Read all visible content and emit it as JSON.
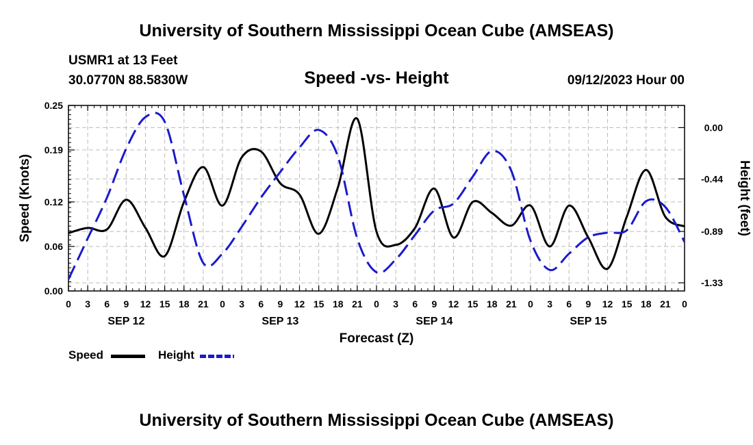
{
  "header": {
    "title": "University of Southern Mississippi Ocean Cube (AMSEAS)",
    "station": "USMR1 at 13 Feet",
    "location": "30.0770N  88.5830W",
    "subtitle": "Speed -vs- Height",
    "datetime": "09/12/2023 Hour 00"
  },
  "footer": {
    "title": "University of Southern Mississippi Ocean Cube (AMSEAS)"
  },
  "legend": {
    "speed_label": "Speed",
    "height_label": "Height"
  },
  "colors": {
    "speed": "#000000",
    "height": "#1a1acc",
    "grid": "#bbbbbb"
  },
  "chart_data": {
    "type": "line",
    "title": "Speed -vs- Height",
    "xlabel": "Forecast (Z)",
    "ylabel": "Speed (Knots)",
    "y2label": "Height (feet)",
    "xlim": [
      0,
      96
    ],
    "ylim": [
      0.0,
      0.25
    ],
    "y2lim": [
      -1.4,
      0.19
    ],
    "x_ticks": [
      0,
      3,
      6,
      9,
      12,
      15,
      18,
      21,
      24,
      27,
      30,
      33,
      36,
      39,
      42,
      45,
      48,
      51,
      54,
      57,
      60,
      63,
      66,
      69,
      72,
      75,
      78,
      81,
      84,
      87,
      90,
      93,
      96
    ],
    "x_tick_labels": [
      "0",
      "3",
      "6",
      "9",
      "12",
      "15",
      "18",
      "21",
      "0",
      "3",
      "6",
      "9",
      "12",
      "15",
      "18",
      "21",
      "0",
      "3",
      "6",
      "9",
      "12",
      "15",
      "18",
      "21",
      "0",
      "3",
      "6",
      "9",
      "12",
      "15",
      "18",
      "21",
      "0"
    ],
    "date_labels": [
      {
        "x": 9,
        "label": "SEP 12"
      },
      {
        "x": 33,
        "label": "SEP 13"
      },
      {
        "x": 57,
        "label": "SEP 14"
      },
      {
        "x": 81,
        "label": "SEP 15"
      }
    ],
    "y_ticks": [
      0.0,
      0.06,
      0.12,
      0.19,
      0.25
    ],
    "y_tick_labels": [
      "0.00",
      "0.06",
      "0.12",
      "0.19",
      "0.25"
    ],
    "y2_ticks": [
      0.0,
      -0.44,
      -0.89,
      -1.33
    ],
    "y2_tick_labels": [
      "0.00",
      "-0.44",
      "-0.89",
      "-1.33"
    ],
    "series": [
      {
        "name": "Speed",
        "axis": "left",
        "style": "solid",
        "points": [
          [
            0,
            0.078
          ],
          [
            3,
            0.085
          ],
          [
            6,
            0.083
          ],
          [
            9,
            0.123
          ],
          [
            12,
            0.085
          ],
          [
            15,
            0.047
          ],
          [
            18,
            0.12
          ],
          [
            21,
            0.167
          ],
          [
            24,
            0.115
          ],
          [
            27,
            0.18
          ],
          [
            30,
            0.188
          ],
          [
            33,
            0.145
          ],
          [
            36,
            0.13
          ],
          [
            39,
            0.077
          ],
          [
            42,
            0.14
          ],
          [
            45,
            0.232
          ],
          [
            48,
            0.08
          ],
          [
            51,
            0.062
          ],
          [
            54,
            0.085
          ],
          [
            57,
            0.138
          ],
          [
            60,
            0.072
          ],
          [
            63,
            0.12
          ],
          [
            66,
            0.105
          ],
          [
            69,
            0.088
          ],
          [
            72,
            0.115
          ],
          [
            75,
            0.06
          ],
          [
            78,
            0.115
          ],
          [
            81,
            0.072
          ],
          [
            84,
            0.03
          ],
          [
            87,
            0.1
          ],
          [
            90,
            0.163
          ],
          [
            93,
            0.1
          ],
          [
            96,
            0.087
          ]
        ]
      },
      {
        "name": "Height",
        "axis": "right",
        "style": "dashed",
        "points": [
          [
            0,
            -1.3
          ],
          [
            3,
            -0.95
          ],
          [
            6,
            -0.6
          ],
          [
            9,
            -0.18
          ],
          [
            12,
            0.09
          ],
          [
            15,
            0.05
          ],
          [
            18,
            -0.58
          ],
          [
            21,
            -1.16
          ],
          [
            24,
            -1.08
          ],
          [
            27,
            -0.85
          ],
          [
            30,
            -0.6
          ],
          [
            33,
            -0.38
          ],
          [
            36,
            -0.17
          ],
          [
            39,
            -0.02
          ],
          [
            42,
            -0.25
          ],
          [
            45,
            -0.95
          ],
          [
            48,
            -1.24
          ],
          [
            51,
            -1.13
          ],
          [
            54,
            -0.92
          ],
          [
            57,
            -0.71
          ],
          [
            60,
            -0.65
          ],
          [
            63,
            -0.42
          ],
          [
            66,
            -0.2
          ],
          [
            69,
            -0.37
          ],
          [
            72,
            -0.97
          ],
          [
            75,
            -1.22
          ],
          [
            78,
            -1.08
          ],
          [
            81,
            -0.94
          ],
          [
            84,
            -0.9
          ],
          [
            87,
            -0.88
          ],
          [
            90,
            -0.63
          ],
          [
            93,
            -0.68
          ],
          [
            96,
            -0.98
          ]
        ]
      }
    ]
  }
}
